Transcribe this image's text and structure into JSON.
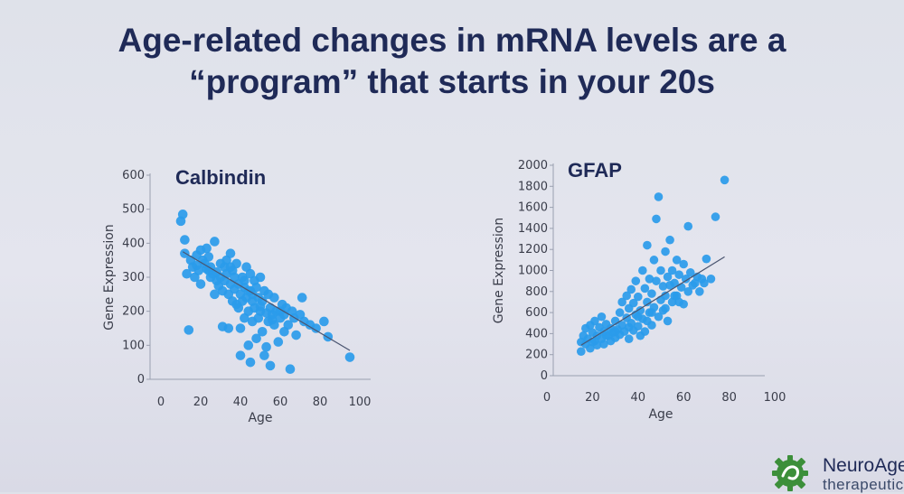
{
  "slide": {
    "title_line1": "Age-related changes in mRNA levels are a",
    "title_line2": "“program” that starts in your 20s"
  },
  "logo": {
    "name": "NeuroAge",
    "sub": "therapeutic",
    "color": "#3c8f3a"
  },
  "chart_data": [
    {
      "type": "scatter",
      "title": "Calbindin",
      "xlabel": "Age",
      "ylabel": "Gene Expression",
      "xlim": [
        0,
        100
      ],
      "ylim": [
        0,
        600
      ],
      "xticks": [
        "0",
        "20",
        "40",
        "60",
        "80",
        "100"
      ],
      "yticks": [
        "0",
        "100",
        "200",
        "300",
        "400",
        "500",
        "600"
      ],
      "point_color": "#2a9bea",
      "trend": {
        "x": [
          11,
          95
        ],
        "y": [
          375,
          85
        ]
      },
      "points": [
        [
          10,
          465
        ],
        [
          11,
          485
        ],
        [
          12,
          410
        ],
        [
          12,
          370
        ],
        [
          13,
          310
        ],
        [
          14,
          145
        ],
        [
          15,
          350
        ],
        [
          16,
          330
        ],
        [
          17,
          300
        ],
        [
          18,
          365
        ],
        [
          18,
          335
        ],
        [
          19,
          320
        ],
        [
          20,
          280
        ],
        [
          20,
          380
        ],
        [
          21,
          350
        ],
        [
          22,
          340
        ],
        [
          23,
          385
        ],
        [
          23,
          325
        ],
        [
          24,
          360
        ],
        [
          25,
          300
        ],
        [
          25,
          330
        ],
        [
          26,
          310
        ],
        [
          27,
          250
        ],
        [
          27,
          405
        ],
        [
          28,
          290
        ],
        [
          29,
          275
        ],
        [
          30,
          340
        ],
        [
          30,
          300
        ],
        [
          31,
          155
        ],
        [
          31,
          260
        ],
        [
          32,
          330
        ],
        [
          32,
          290
        ],
        [
          33,
          310
        ],
        [
          33,
          350
        ],
        [
          34,
          250
        ],
        [
          34,
          150
        ],
        [
          35,
          280
        ],
        [
          35,
          370
        ],
        [
          36,
          230
        ],
        [
          36,
          320
        ],
        [
          37,
          265
        ],
        [
          37,
          300
        ],
        [
          38,
          220
        ],
        [
          38,
          340
        ],
        [
          39,
          210
        ],
        [
          39,
          280
        ],
        [
          40,
          250
        ],
        [
          40,
          70
        ],
        [
          40,
          150
        ],
        [
          41,
          300
        ],
        [
          41,
          230
        ],
        [
          42,
          290
        ],
        [
          42,
          180
        ],
        [
          43,
          330
        ],
        [
          43,
          240
        ],
        [
          44,
          200
        ],
        [
          44,
          100
        ],
        [
          45,
          260
        ],
        [
          45,
          310
        ],
        [
          45,
          50
        ],
        [
          46,
          170
        ],
        [
          46,
          230
        ],
        [
          47,
          210
        ],
        [
          47,
          290
        ],
        [
          48,
          270
        ],
        [
          48,
          120
        ],
        [
          49,
          240
        ],
        [
          49,
          180
        ],
        [
          50,
          200
        ],
        [
          50,
          300
        ],
        [
          51,
          140
        ],
        [
          51,
          230
        ],
        [
          52,
          260
        ],
        [
          52,
          70
        ],
        [
          53,
          195
        ],
        [
          53,
          95
        ],
        [
          54,
          250
        ],
        [
          54,
          170
        ],
        [
          55,
          210
        ],
        [
          55,
          40
        ],
        [
          56,
          190
        ],
        [
          57,
          160
        ],
        [
          57,
          240
        ],
        [
          58,
          200
        ],
        [
          59,
          110
        ],
        [
          60,
          180
        ],
        [
          61,
          220
        ],
        [
          62,
          190
        ],
        [
          62,
          140
        ],
        [
          63,
          210
        ],
        [
          64,
          160
        ],
        [
          65,
          30
        ],
        [
          66,
          200
        ],
        [
          67,
          180
        ],
        [
          68,
          130
        ],
        [
          70,
          190
        ],
        [
          71,
          240
        ],
        [
          72,
          170
        ],
        [
          75,
          160
        ],
        [
          78,
          150
        ],
        [
          82,
          170
        ],
        [
          84,
          125
        ],
        [
          95,
          65
        ],
        [
          24,
          320
        ],
        [
          28,
          315
        ],
        [
          35,
          330
        ],
        [
          42,
          270
        ],
        [
          46,
          250
        ],
        [
          50,
          215
        ],
        [
          56,
          175
        ],
        [
          60,
          200
        ],
        [
          44,
          260
        ]
      ]
    },
    {
      "type": "scatter",
      "title": "GFAP",
      "xlabel": "Age",
      "ylabel": "Gene Expression",
      "xlim": [
        0,
        100
      ],
      "ylim": [
        0,
        2000
      ],
      "xticks": [
        "0",
        "20",
        "40",
        "60",
        "80",
        "100"
      ],
      "yticks": [
        "0",
        "200",
        "400",
        "600",
        "800",
        "1000",
        "1200",
        "1400",
        "1600",
        "1800",
        "2000"
      ],
      "point_color": "#2a9bea",
      "trend": {
        "x": [
          15,
          78
        ],
        "y": [
          290,
          1130
        ]
      },
      "points": [
        [
          15,
          230
        ],
        [
          15,
          320
        ],
        [
          16,
          380
        ],
        [
          17,
          300
        ],
        [
          17,
          450
        ],
        [
          18,
          350
        ],
        [
          19,
          260
        ],
        [
          19,
          480
        ],
        [
          20,
          410
        ],
        [
          21,
          330
        ],
        [
          21,
          520
        ],
        [
          22,
          290
        ],
        [
          22,
          380
        ],
        [
          23,
          460
        ],
        [
          24,
          350
        ],
        [
          24,
          560
        ],
        [
          25,
          300
        ],
        [
          25,
          420
        ],
        [
          26,
          490
        ],
        [
          27,
          380
        ],
        [
          28,
          330
        ],
        [
          28,
          450
        ],
        [
          29,
          410
        ],
        [
          30,
          360
        ],
        [
          30,
          520
        ],
        [
          31,
          440
        ],
        [
          32,
          390
        ],
        [
          32,
          600
        ],
        [
          33,
          480
        ],
        [
          33,
          700
        ],
        [
          34,
          420
        ],
        [
          35,
          550
        ],
        [
          35,
          760
        ],
        [
          36,
          350
        ],
        [
          36,
          640
        ],
        [
          37,
          500
        ],
        [
          37,
          820
        ],
        [
          38,
          430
        ],
        [
          38,
          690
        ],
        [
          39,
          580
        ],
        [
          39,
          900
        ],
        [
          40,
          470
        ],
        [
          40,
          750
        ],
        [
          41,
          380
        ],
        [
          41,
          620
        ],
        [
          42,
          1000
        ],
        [
          42,
          540
        ],
        [
          43,
          830
        ],
        [
          43,
          420
        ],
        [
          44,
          700
        ],
        [
          44,
          1240
        ],
        [
          45,
          600
        ],
        [
          45,
          920
        ],
        [
          46,
          480
        ],
        [
          46,
          780
        ],
        [
          47,
          1100
        ],
        [
          47,
          650
        ],
        [
          48,
          900
        ],
        [
          48,
          1490
        ],
        [
          49,
          560
        ],
        [
          49,
          1700
        ],
        [
          50,
          720
        ],
        [
          50,
          1000
        ],
        [
          51,
          850
        ],
        [
          51,
          620
        ],
        [
          52,
          1180
        ],
        [
          52,
          760
        ],
        [
          53,
          940
        ],
        [
          53,
          520
        ],
        [
          54,
          1290
        ],
        [
          54,
          860
        ],
        [
          55,
          700
        ],
        [
          55,
          1000
        ],
        [
          56,
          880
        ],
        [
          57,
          1100
        ],
        [
          57,
          760
        ],
        [
          58,
          960
        ],
        [
          59,
          840
        ],
        [
          60,
          1060
        ],
        [
          60,
          680
        ],
        [
          61,
          920
        ],
        [
          62,
          1420
        ],
        [
          62,
          800
        ],
        [
          63,
          980
        ],
        [
          65,
          880
        ],
        [
          66,
          940
        ],
        [
          67,
          800
        ],
        [
          68,
          920
        ],
        [
          69,
          880
        ],
        [
          70,
          1110
        ],
        [
          72,
          920
        ],
        [
          74,
          1510
        ],
        [
          78,
          1860
        ],
        [
          58,
          700
        ],
        [
          46,
          600
        ],
        [
          52,
          640
        ],
        [
          40,
          560
        ],
        [
          44,
          520
        ],
        [
          36,
          460
        ],
        [
          30,
          420
        ],
        [
          26,
          380
        ],
        [
          20,
          320
        ],
        [
          56,
          760
        ],
        [
          64,
          860
        ]
      ]
    }
  ]
}
